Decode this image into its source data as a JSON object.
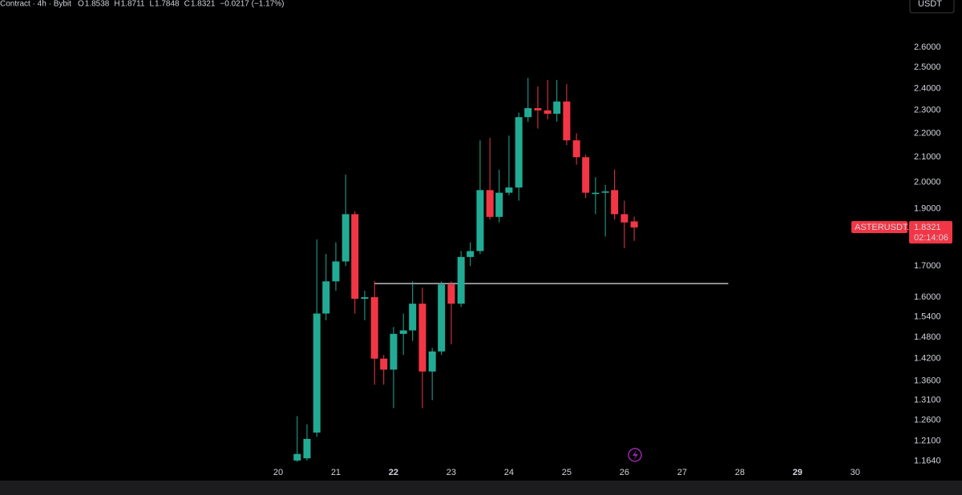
{
  "header": {
    "symbol": "Contract · 4h · Bybit",
    "o": "O",
    "h": "H",
    "l": "L",
    "c": "C",
    "change": "−0.0217 (−1.17%)",
    "currency": "USDT"
  },
  "chart_data": {
    "type": "candlestick",
    "x": [
      20.33,
      20.5,
      20.67,
      20.83,
      21,
      21.17,
      21.33,
      21.5,
      21.67,
      21.83,
      22,
      22.17,
      22.33,
      22.5,
      22.67,
      22.83,
      23,
      23.17,
      23.33,
      23.5,
      23.67,
      23.83,
      24,
      24.17,
      24.33,
      24.5,
      24.67,
      24.83,
      25,
      25.17,
      25.33,
      25.5,
      25.67,
      25.83,
      26,
      26.17
    ],
    "open": [
      1.165,
      1.17,
      1.23,
      1.55,
      1.65,
      1.715,
      1.88,
      1.595,
      1.6,
      1.42,
      1.39,
      1.49,
      1.5,
      1.58,
      1.385,
      1.44,
      1.64,
      1.58,
      1.73,
      1.75,
      1.97,
      1.87,
      1.96,
      1.98,
      2.27,
      2.31,
      2.3,
      2.285,
      2.34,
      2.17,
      2.1,
      1.955,
      1.96,
      1.97,
      1.88,
      1.8538
    ],
    "high": [
      1.27,
      1.25,
      1.79,
      1.74,
      1.78,
      2.03,
      1.89,
      1.62,
      1.65,
      1.43,
      1.51,
      1.55,
      1.65,
      1.63,
      1.45,
      1.65,
      1.65,
      1.75,
      1.78,
      2.17,
      2.18,
      2.05,
      2.19,
      2.29,
      2.45,
      2.41,
      2.44,
      2.44,
      2.42,
      2.2,
      2.11,
      2.02,
      1.99,
      2.05,
      1.93,
      1.8711
    ],
    "low": [
      1.162,
      1.165,
      1.22,
      1.53,
      1.62,
      1.7,
      1.55,
      1.53,
      1.35,
      1.35,
      1.29,
      1.43,
      1.47,
      1.29,
      1.31,
      1.43,
      1.46,
      1.57,
      1.7,
      1.74,
      1.86,
      1.85,
      1.95,
      1.93,
      2.25,
      2.22,
      2.26,
      2.25,
      2.15,
      2.07,
      1.94,
      1.88,
      1.8,
      1.86,
      1.76,
      1.7848
    ],
    "close": [
      1.18,
      1.215,
      1.55,
      1.65,
      1.715,
      1.88,
      1.595,
      1.6,
      1.42,
      1.39,
      1.49,
      1.5,
      1.58,
      1.385,
      1.44,
      1.64,
      1.58,
      1.73,
      1.75,
      1.97,
      1.87,
      1.96,
      1.98,
      2.27,
      2.31,
      2.3,
      2.285,
      2.34,
      2.17,
      2.1,
      1.96,
      1.96,
      1.965,
      1.88,
      1.85,
      1.8321
    ],
    "up_color": "#22ab94",
    "down_color": "#f23645",
    "xlim": [
      15.18,
      30.6
    ],
    "xticks": [
      20,
      21,
      22,
      23,
      24,
      25,
      26,
      27,
      28,
      29,
      30
    ],
    "ylim": [
      1.124,
      2.85
    ],
    "log_y": true,
    "yticks": [
      {
        "value": 1.164,
        "label": "1.1640"
      },
      {
        "value": 1.21,
        "label": "1.2100"
      },
      {
        "value": 1.26,
        "label": "1.2600"
      },
      {
        "value": 1.31,
        "label": "1.3100"
      },
      {
        "value": 1.36,
        "label": "1.3600"
      },
      {
        "value": 1.42,
        "label": "1.4200"
      },
      {
        "value": 1.48,
        "label": "1.4800"
      },
      {
        "value": 1.54,
        "label": "1.5400"
      },
      {
        "value": 1.6,
        "label": "1.6000"
      },
      {
        "value": 1.7,
        "label": "1.7000"
      },
      {
        "value": 1.9,
        "label": "1.9000"
      },
      {
        "value": 2,
        "label": "2.0000"
      },
      {
        "value": 2.1,
        "label": "2.1000"
      },
      {
        "value": 2.2,
        "label": "2.2000"
      },
      {
        "value": 2.3,
        "label": "2.3000"
      },
      {
        "value": 2.4,
        "label": "2.4000"
      },
      {
        "value": 2.5,
        "label": "2.5000"
      },
      {
        "value": 2.6,
        "label": "2.6000"
      }
    ],
    "hline": {
      "value": 1.643,
      "x": [
        21.67,
        27.8
      ]
    },
    "price_label": {
      "symbol": "ASTERUSDT.P",
      "countdown": "02:14:06"
    }
  }
}
